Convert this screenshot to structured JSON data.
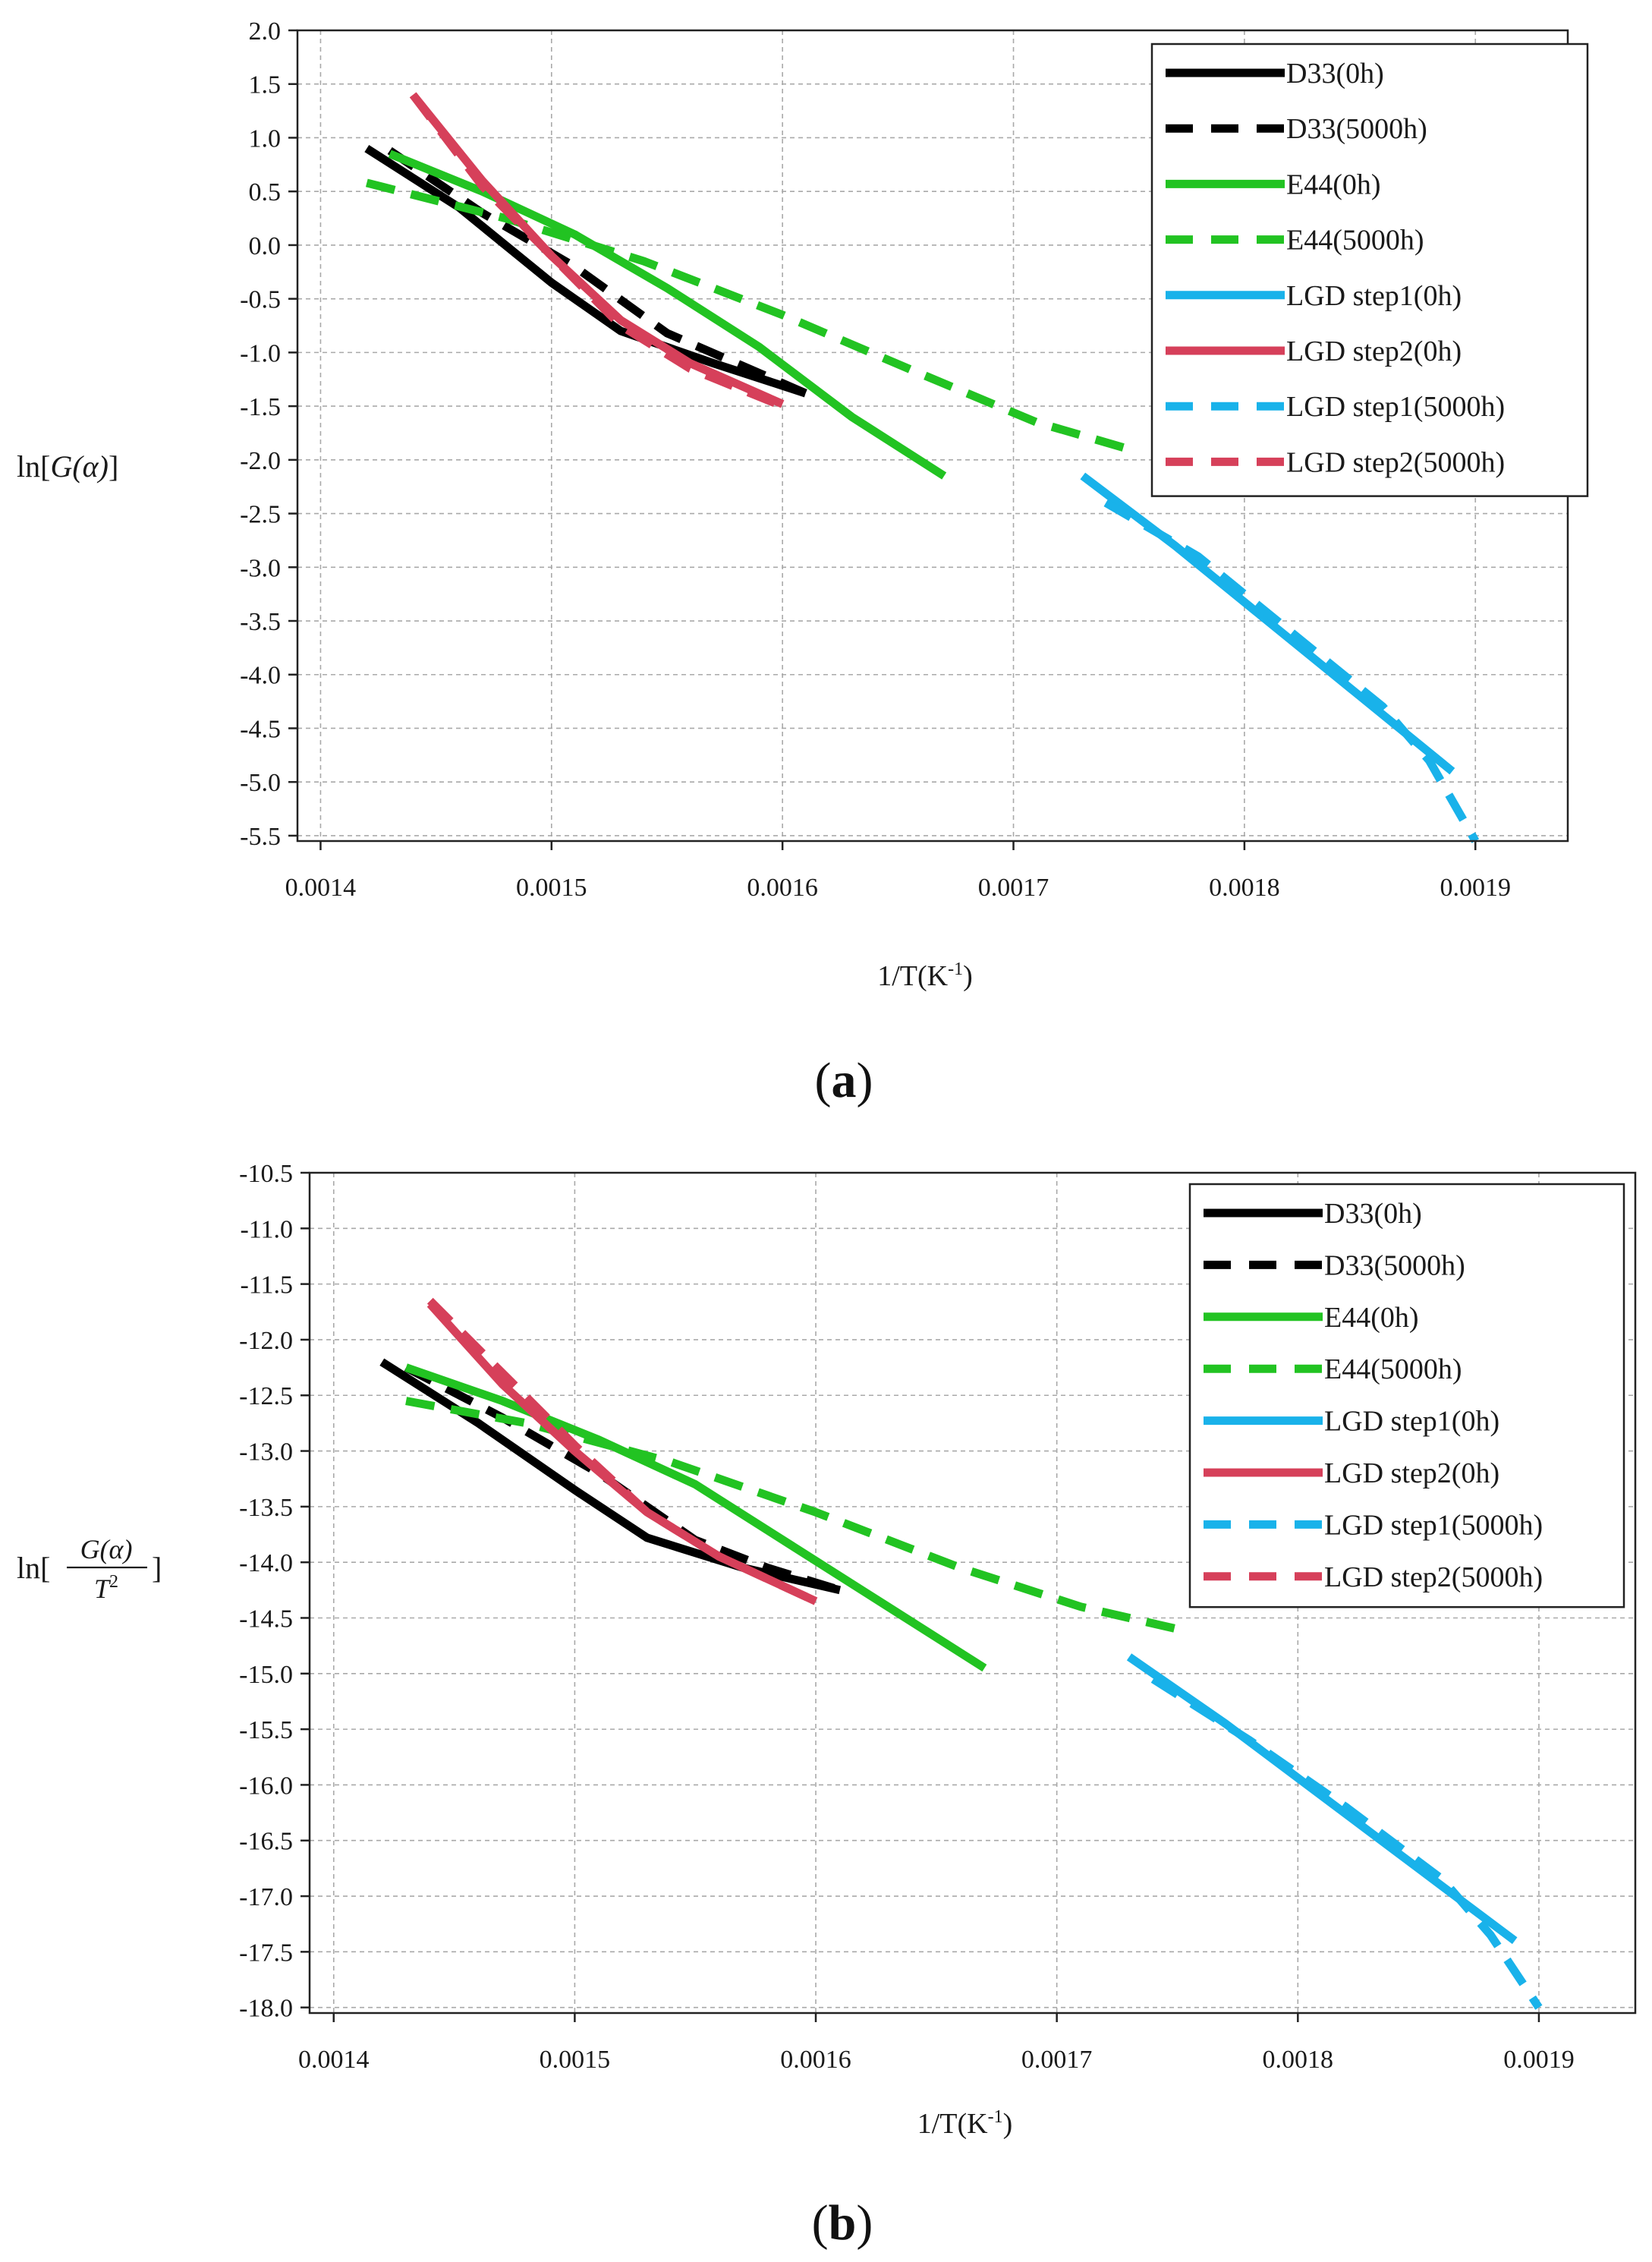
{
  "chart_data": [
    {
      "type": "line",
      "panel_label": "a",
      "title": "",
      "xlabel": "1/T(K-1)",
      "xlabel_main": "1/T(K",
      "xlabel_sup": "-1",
      "xlabel_close": ")",
      "ylabel": "ln[G(α)]",
      "ylabel_parts": {
        "prefix": "ln[",
        "func": "G(α)",
        "suffix": "]"
      },
      "xlim": [
        0.00139,
        0.00194
      ],
      "ylim": [
        -5.55,
        2.0
      ],
      "xticks": [
        0.0014,
        0.0015,
        0.0016,
        0.0017,
        0.0018,
        0.0019
      ],
      "xtick_labels": [
        "0.0014",
        "0.0015",
        "0.0016",
        "0.0017",
        "0.0018",
        "0.0019"
      ],
      "yticks": [
        2.0,
        1.5,
        1.0,
        0.5,
        0.0,
        -0.5,
        -1.0,
        -1.5,
        -2.0,
        -2.5,
        -3.0,
        -3.5,
        -4.0,
        -4.5,
        -5.0,
        -5.5
      ],
      "ytick_labels": [
        "2.0",
        "1.5",
        "1.0",
        "0.5",
        "0.0",
        "-0.5",
        "-1.0",
        "-1.5",
        "-2.0",
        "-2.5",
        "-3.0",
        "-3.5",
        "-4.0",
        "-4.5",
        "-5.0",
        "-5.5"
      ],
      "grid": true,
      "legend_position": "top-right",
      "series": [
        {
          "name": "D33(0h)",
          "color": "#000000",
          "style": "solid",
          "x": [
            0.00142,
            0.00146,
            0.0015,
            0.00153,
            0.00157,
            0.00161
          ],
          "y": [
            0.9,
            0.35,
            -0.35,
            -0.8,
            -1.1,
            -1.38
          ]
        },
        {
          "name": "D33(5000h)",
          "color": "#000000",
          "style": "dashed",
          "x": [
            0.00143,
            0.00147,
            0.00151,
            0.00155,
            0.00158,
            0.00161
          ],
          "y": [
            0.88,
            0.3,
            -0.2,
            -0.82,
            -1.1,
            -1.38
          ]
        },
        {
          "name": "E44(0h)",
          "color": "#22c322",
          "style": "solid",
          "x": [
            0.00143,
            0.00147,
            0.00151,
            0.00155,
            0.00159,
            0.00163,
            0.00167
          ],
          "y": [
            0.85,
            0.5,
            0.1,
            -0.4,
            -0.95,
            -1.6,
            -2.15
          ]
        },
        {
          "name": "E44(5000h)",
          "color": "#22c322",
          "style": "dashed",
          "x": [
            0.00142,
            0.00148,
            0.00154,
            0.0016,
            0.00166,
            0.00171,
            0.00175
          ],
          "y": [
            0.58,
            0.25,
            -0.15,
            -0.65,
            -1.2,
            -1.65,
            -1.9
          ]
        },
        {
          "name": "LGD step1(0h)",
          "color": "#19b2ea",
          "style": "solid",
          "x": [
            0.00173,
            0.00177,
            0.00181,
            0.00185,
            0.00189
          ],
          "y": [
            -2.15,
            -2.8,
            -3.5,
            -4.2,
            -4.9
          ]
        },
        {
          "name": "LGD step2(0h)",
          "color": "#d6405a",
          "style": "solid",
          "x": [
            0.00144,
            0.00147,
            0.0015,
            0.00153,
            0.00156,
            0.0016
          ],
          "y": [
            1.4,
            0.6,
            -0.1,
            -0.7,
            -1.1,
            -1.48
          ]
        },
        {
          "name": "LGD step1(5000h)",
          "color": "#19b2ea",
          "style": "dashed",
          "x": [
            0.00174,
            0.00178,
            0.00182,
            0.00186,
            0.00188,
            0.0019
          ],
          "y": [
            -2.4,
            -2.9,
            -3.6,
            -4.3,
            -4.8,
            -5.55
          ]
        },
        {
          "name": "LGD step2(5000h)",
          "color": "#d6405a",
          "style": "dashed",
          "x": [
            0.00144,
            0.00147,
            0.0015,
            0.00153,
            0.00156,
            0.0016
          ],
          "y": [
            1.4,
            0.55,
            -0.1,
            -0.75,
            -1.15,
            -1.5
          ]
        }
      ]
    },
    {
      "type": "line",
      "panel_label": "b",
      "title": "",
      "xlabel": "1/T(K-1)",
      "xlabel_main": "1/T(K",
      "xlabel_sup": "-1",
      "xlabel_close": ")",
      "ylabel": "ln[G(α)/T2]",
      "ylabel_parts": {
        "prefix": "ln[",
        "numerator": "G(α)",
        "denominator": "T",
        "den_sup": "2",
        "suffix": "]"
      },
      "xlim": [
        0.00139,
        0.00194
      ],
      "ylim": [
        -18.05,
        -10.5
      ],
      "xticks": [
        0.0014,
        0.0015,
        0.0016,
        0.0017,
        0.0018,
        0.0019
      ],
      "xtick_labels": [
        "0.0014",
        "0.0015",
        "0.0016",
        "0.0017",
        "0.0018",
        "0.0019"
      ],
      "yticks": [
        -10.5,
        -11.0,
        -11.5,
        -12.0,
        -12.5,
        -13.0,
        -13.5,
        -14.0,
        -14.5,
        -15.0,
        -15.5,
        -16.0,
        -16.5,
        -17.0,
        -17.5,
        -18.0
      ],
      "ytick_labels": [
        "-10.5",
        "-11.0",
        "-11.5",
        "-12.0",
        "-12.5",
        "-13.0",
        "-13.5",
        "-14.0",
        "-14.5",
        "-15.0",
        "-15.5",
        "-16.0",
        "-16.5",
        "-17.0",
        "-17.5",
        "-18.0"
      ],
      "grid": true,
      "legend_position": "top-right",
      "series": [
        {
          "name": "D33(0h)",
          "color": "#000000",
          "style": "solid",
          "x": [
            0.00142,
            0.00146,
            0.0015,
            0.00153,
            0.00157,
            0.00161
          ],
          "y": [
            -12.2,
            -12.75,
            -13.35,
            -13.78,
            -14.05,
            -14.25
          ]
        },
        {
          "name": "D33(5000h)",
          "color": "#000000",
          "style": "dashed",
          "x": [
            0.00143,
            0.00147,
            0.00151,
            0.00155,
            0.00158,
            0.00161
          ],
          "y": [
            -12.25,
            -12.7,
            -13.2,
            -13.8,
            -14.05,
            -14.25
          ]
        },
        {
          "name": "E44(0h)",
          "color": "#22c322",
          "style": "solid",
          "x": [
            0.00143,
            0.00147,
            0.00151,
            0.00155,
            0.00159,
            0.00163,
            0.00167
          ],
          "y": [
            -12.25,
            -12.55,
            -12.9,
            -13.3,
            -13.85,
            -14.4,
            -14.95
          ]
        },
        {
          "name": "E44(5000h)",
          "color": "#22c322",
          "style": "dashed",
          "x": [
            0.00143,
            0.00148,
            0.00154,
            0.0016,
            0.00166,
            0.00171,
            0.00175
          ],
          "y": [
            -12.55,
            -12.75,
            -13.1,
            -13.55,
            -14.05,
            -14.4,
            -14.6
          ]
        },
        {
          "name": "LGD step1(0h)",
          "color": "#19b2ea",
          "style": "solid",
          "x": [
            0.00173,
            0.00177,
            0.00181,
            0.00185,
            0.00189
          ],
          "y": [
            -14.85,
            -15.45,
            -16.1,
            -16.75,
            -17.4
          ]
        },
        {
          "name": "LGD step2(0h)",
          "color": "#d6405a",
          "style": "solid",
          "x": [
            0.00144,
            0.00147,
            0.0015,
            0.00153,
            0.00156,
            0.0016
          ],
          "y": [
            -11.68,
            -12.4,
            -13.0,
            -13.55,
            -13.95,
            -14.35
          ]
        },
        {
          "name": "LGD step1(5000h)",
          "color": "#19b2ea",
          "style": "dashed",
          "x": [
            0.00174,
            0.00178,
            0.00182,
            0.00186,
            0.00188,
            0.0019
          ],
          "y": [
            -15.05,
            -15.6,
            -16.2,
            -16.85,
            -17.35,
            -18.0
          ]
        },
        {
          "name": "LGD step2(5000h)",
          "color": "#d6405a",
          "style": "dashed",
          "x": [
            0.00144,
            0.00147,
            0.0015,
            0.00153,
            0.00156,
            0.0016
          ],
          "y": [
            -11.65,
            -12.3,
            -12.95,
            -13.55,
            -13.95,
            -14.35
          ]
        }
      ]
    }
  ]
}
